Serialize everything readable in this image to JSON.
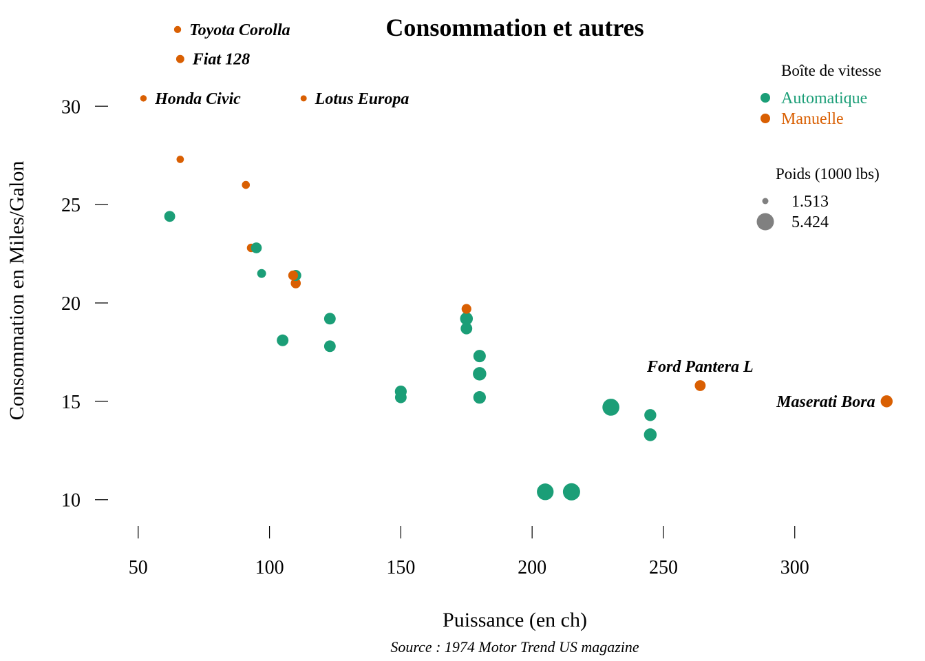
{
  "chart_data": {
    "type": "scatter",
    "title": "Consommation et autres",
    "xlabel": "Puissance (en ch)",
    "ylabel": "Consommation en Miles/Galon",
    "caption": "Source : 1974 Motor Trend US magazine",
    "xlim": [
      38,
      342
    ],
    "ylim": [
      8.8,
      32.6
    ],
    "x_ticks": [
      50,
      100,
      150,
      200,
      250,
      300
    ],
    "y_ticks": [
      10,
      15,
      20,
      25,
      30
    ],
    "grid": false,
    "legend_color": {
      "title": "Boîte de vitesse",
      "entries": [
        {
          "key": "auto",
          "label": "Automatique",
          "color": "#1b9e77"
        },
        {
          "key": "manual",
          "label": "Manuelle",
          "color": "#d95f02"
        }
      ]
    },
    "legend_size": {
      "title": "Poids  (1000 lbs)",
      "entries": [
        {
          "label": "1.513",
          "value": 1.513
        },
        {
          "label": "5.424",
          "value": 5.424
        }
      ]
    },
    "points": [
      {
        "hp": 110,
        "mpg": 21.0,
        "wt": 2.62,
        "am": "manual"
      },
      {
        "hp": 110,
        "mpg": 21.0,
        "wt": 2.875,
        "am": "manual"
      },
      {
        "hp": 93,
        "mpg": 22.8,
        "wt": 2.32,
        "am": "manual"
      },
      {
        "hp": 110,
        "mpg": 21.4,
        "wt": 3.215,
        "am": "auto"
      },
      {
        "hp": 175,
        "mpg": 18.7,
        "wt": 3.44,
        "am": "auto"
      },
      {
        "hp": 105,
        "mpg": 18.1,
        "wt": 3.46,
        "am": "auto"
      },
      {
        "hp": 245,
        "mpg": 14.3,
        "wt": 3.57,
        "am": "auto"
      },
      {
        "hp": 62,
        "mpg": 24.4,
        "wt": 3.19,
        "am": "auto"
      },
      {
        "hp": 95,
        "mpg": 22.8,
        "wt": 3.15,
        "am": "auto"
      },
      {
        "hp": 123,
        "mpg": 19.2,
        "wt": 3.44,
        "am": "auto"
      },
      {
        "hp": 123,
        "mpg": 17.8,
        "wt": 3.44,
        "am": "auto"
      },
      {
        "hp": 180,
        "mpg": 16.4,
        "wt": 4.07,
        "am": "auto"
      },
      {
        "hp": 180,
        "mpg": 17.3,
        "wt": 3.73,
        "am": "auto"
      },
      {
        "hp": 180,
        "mpg": 15.2,
        "wt": 3.78,
        "am": "auto"
      },
      {
        "hp": 205,
        "mpg": 10.4,
        "wt": 5.25,
        "am": "auto"
      },
      {
        "hp": 215,
        "mpg": 10.4,
        "wt": 5.424,
        "am": "auto"
      },
      {
        "hp": 230,
        "mpg": 14.7,
        "wt": 5.345,
        "am": "auto"
      },
      {
        "hp": 66,
        "mpg": 32.4,
        "wt": 2.2,
        "am": "manual",
        "label": "Fiat 128"
      },
      {
        "hp": 52,
        "mpg": 30.4,
        "wt": 1.615,
        "am": "manual",
        "label": "Honda Civic"
      },
      {
        "hp": 65,
        "mpg": 33.9,
        "wt": 1.835,
        "am": "manual",
        "label": "Toyota Corolla"
      },
      {
        "hp": 97,
        "mpg": 21.5,
        "wt": 2.465,
        "am": "auto"
      },
      {
        "hp": 150,
        "mpg": 15.5,
        "wt": 3.52,
        "am": "auto"
      },
      {
        "hp": 150,
        "mpg": 15.2,
        "wt": 3.435,
        "am": "auto"
      },
      {
        "hp": 245,
        "mpg": 13.3,
        "wt": 3.84,
        "am": "auto"
      },
      {
        "hp": 175,
        "mpg": 19.2,
        "wt": 3.845,
        "am": "auto"
      },
      {
        "hp": 66,
        "mpg": 27.3,
        "wt": 1.935,
        "am": "manual"
      },
      {
        "hp": 91,
        "mpg": 26.0,
        "wt": 2.14,
        "am": "manual"
      },
      {
        "hp": 113,
        "mpg": 30.4,
        "wt": 1.513,
        "am": "manual",
        "label": "Lotus Europa"
      },
      {
        "hp": 264,
        "mpg": 15.8,
        "wt": 3.17,
        "am": "manual",
        "label": "Ford Pantera L"
      },
      {
        "hp": 175,
        "mpg": 19.7,
        "wt": 2.77,
        "am": "manual"
      },
      {
        "hp": 335,
        "mpg": 15.0,
        "wt": 3.57,
        "am": "manual",
        "label": "Maserati Bora"
      },
      {
        "hp": 109,
        "mpg": 21.4,
        "wt": 2.78,
        "am": "manual"
      }
    ]
  }
}
